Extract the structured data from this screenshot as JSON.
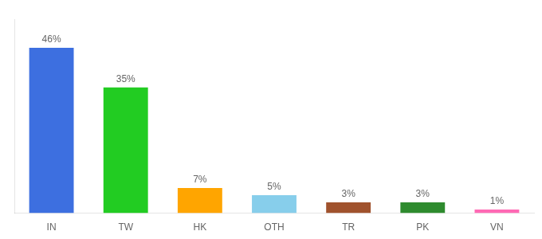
{
  "chart_data": {
    "type": "bar",
    "categories": [
      "IN",
      "TW",
      "HK",
      "OTH",
      "TR",
      "PK",
      "VN"
    ],
    "values": [
      46,
      35,
      7,
      5,
      3,
      3,
      1
    ],
    "value_labels": [
      "46%",
      "35%",
      "7%",
      "5%",
      "3%",
      "3%",
      "1%"
    ],
    "colors": [
      "#3D6FE0",
      "#22CC22",
      "#FFA500",
      "#87CEEB",
      "#A0522D",
      "#2E8B2E",
      "#FF69B4"
    ],
    "data_labels": true,
    "ylim": [
      0,
      54
    ],
    "grid": false,
    "tick_labels": "x"
  }
}
